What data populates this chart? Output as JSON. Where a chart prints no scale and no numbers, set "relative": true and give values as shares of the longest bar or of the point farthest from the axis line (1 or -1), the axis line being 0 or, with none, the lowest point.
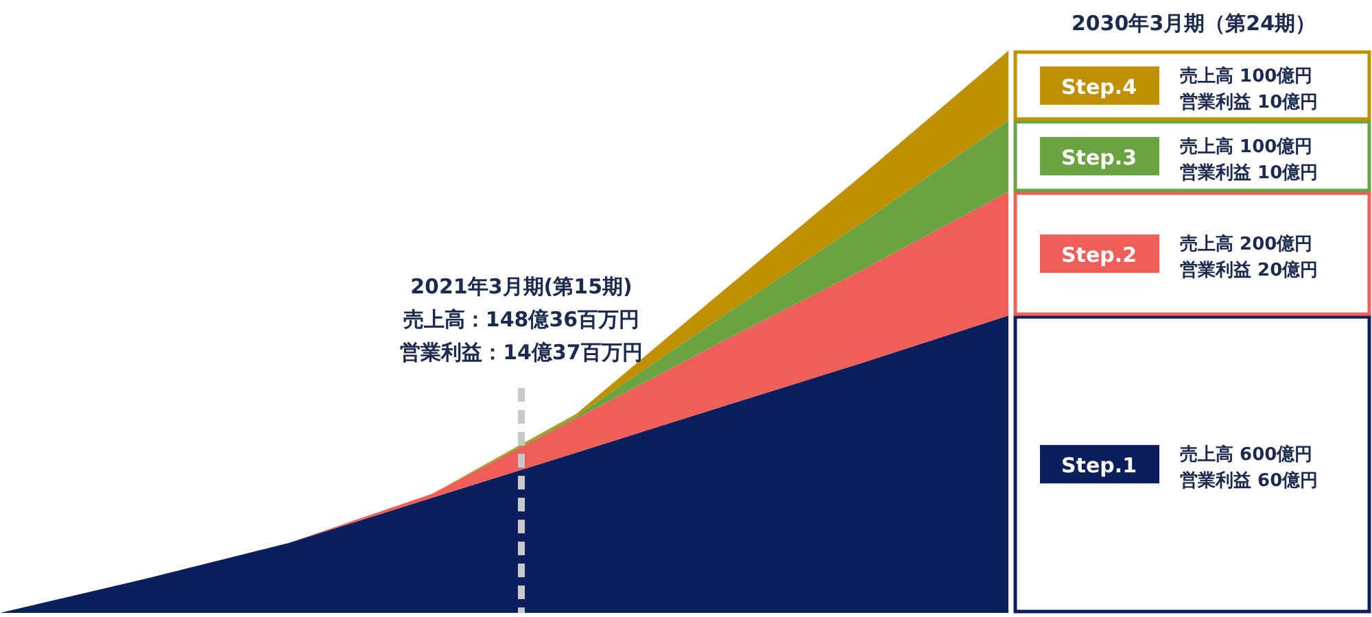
{
  "chart_data": {
    "type": "area",
    "stacked": true,
    "relative": true,
    "title": "2030年3月期（第24期）",
    "categories": [
      null,
      null,
      null,
      null,
      null,
      null,
      null,
      null
    ],
    "series": [
      {
        "name": "Step.1",
        "color": "#0b1f5c",
        "values": [
          0,
          0.06,
          0.124,
          0.205,
          0.285,
          0.366,
          0.446,
          0.529
        ]
      },
      {
        "name": "Step.2",
        "color": "#ef5f58",
        "values": [
          0,
          0,
          0,
          0.007,
          0.061,
          0.115,
          0.166,
          0.22
        ]
      },
      {
        "name": "Step.3",
        "color": "#6aa442",
        "values": [
          0,
          0,
          0,
          0,
          0.004,
          0.044,
          0.085,
          0.127
        ]
      },
      {
        "name": "Step.4",
        "color": "#bf9000",
        "values": [
          0,
          0,
          0,
          0,
          0.004,
          0.044,
          0.085,
          0.124
        ]
      }
    ],
    "annotations": [
      "2021年3月期(第15期)",
      "売上高：148億36百万円",
      "営業利益：14億37百万円",
      "売上高 600億円",
      "営業利益 60億円",
      "売上高 200億円",
      "営業利益 20億円",
      "売上高 100億円",
      "営業利益 10億円",
      "売上高 100億円",
      "営業利益 10億円"
    ],
    "legend": "right",
    "grid": false
  }
}
